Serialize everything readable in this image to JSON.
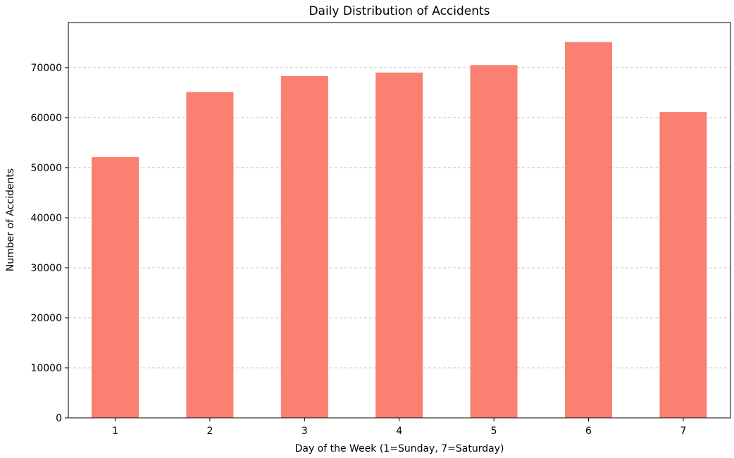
{
  "chart_data": {
    "type": "bar",
    "title": "Daily Distribution of Accidents",
    "xlabel": "Day of the Week (1=Sunday, 7=Saturday)",
    "ylabel": "Number of Accidents",
    "categories": [
      "1",
      "2",
      "3",
      "4",
      "5",
      "6",
      "7"
    ],
    "values": [
      52100,
      65100,
      68300,
      69000,
      70500,
      75100,
      61100
    ],
    "ylim": [
      0,
      79000
    ],
    "yticks": [
      0,
      10000,
      20000,
      30000,
      40000,
      50000,
      60000,
      70000
    ],
    "ytick_labels": [
      "0",
      "10000",
      "20000",
      "30000",
      "40000",
      "50000",
      "60000",
      "70000"
    ],
    "grid": "y-axis dashed",
    "bar_color": "#fa8072",
    "grid_color": "#c8c8c8"
  }
}
